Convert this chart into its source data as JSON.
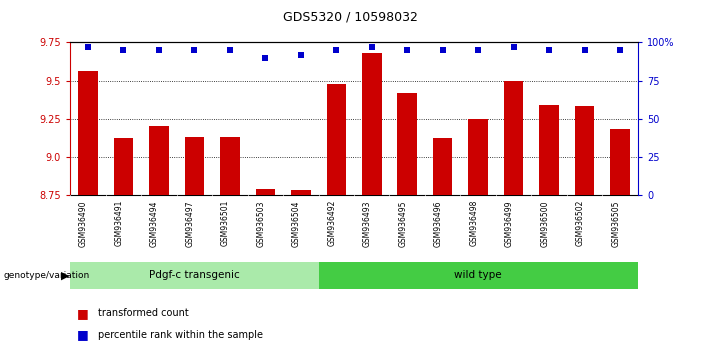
{
  "title": "GDS5320 / 10598032",
  "samples": [
    "GSM936490",
    "GSM936491",
    "GSM936494",
    "GSM936497",
    "GSM936501",
    "GSM936503",
    "GSM936504",
    "GSM936492",
    "GSM936493",
    "GSM936495",
    "GSM936496",
    "GSM936498",
    "GSM936499",
    "GSM936500",
    "GSM936502",
    "GSM936505"
  ],
  "bar_values": [
    9.56,
    9.12,
    9.2,
    9.13,
    9.13,
    8.79,
    8.78,
    9.48,
    9.68,
    9.42,
    9.12,
    9.25,
    9.5,
    9.34,
    9.33,
    9.18
  ],
  "percentile_values": [
    97,
    95,
    95,
    95,
    95,
    90,
    92,
    95,
    97,
    95,
    95,
    95,
    97,
    95,
    95,
    95
  ],
  "bar_color": "#cc0000",
  "dot_color": "#0000cc",
  "y_min": 8.75,
  "y_max": 9.75,
  "y_ticks": [
    8.75,
    9.0,
    9.25,
    9.5,
    9.75
  ],
  "y2_ticks": [
    0,
    25,
    50,
    75,
    100
  ],
  "n_group1": 7,
  "n_group2": 9,
  "group1_label": "Pdgf-c transgenic",
  "group2_label": "wild type",
  "group1_color": "#aaeaaa",
  "group2_color": "#44cc44",
  "genotype_label": "genotype/variation",
  "legend_bar": "transformed count",
  "legend_dot": "percentile rank within the sample",
  "bg_color": "#ffffff",
  "plot_bg": "#ffffff",
  "sample_label_bg": "#bbbbbb"
}
